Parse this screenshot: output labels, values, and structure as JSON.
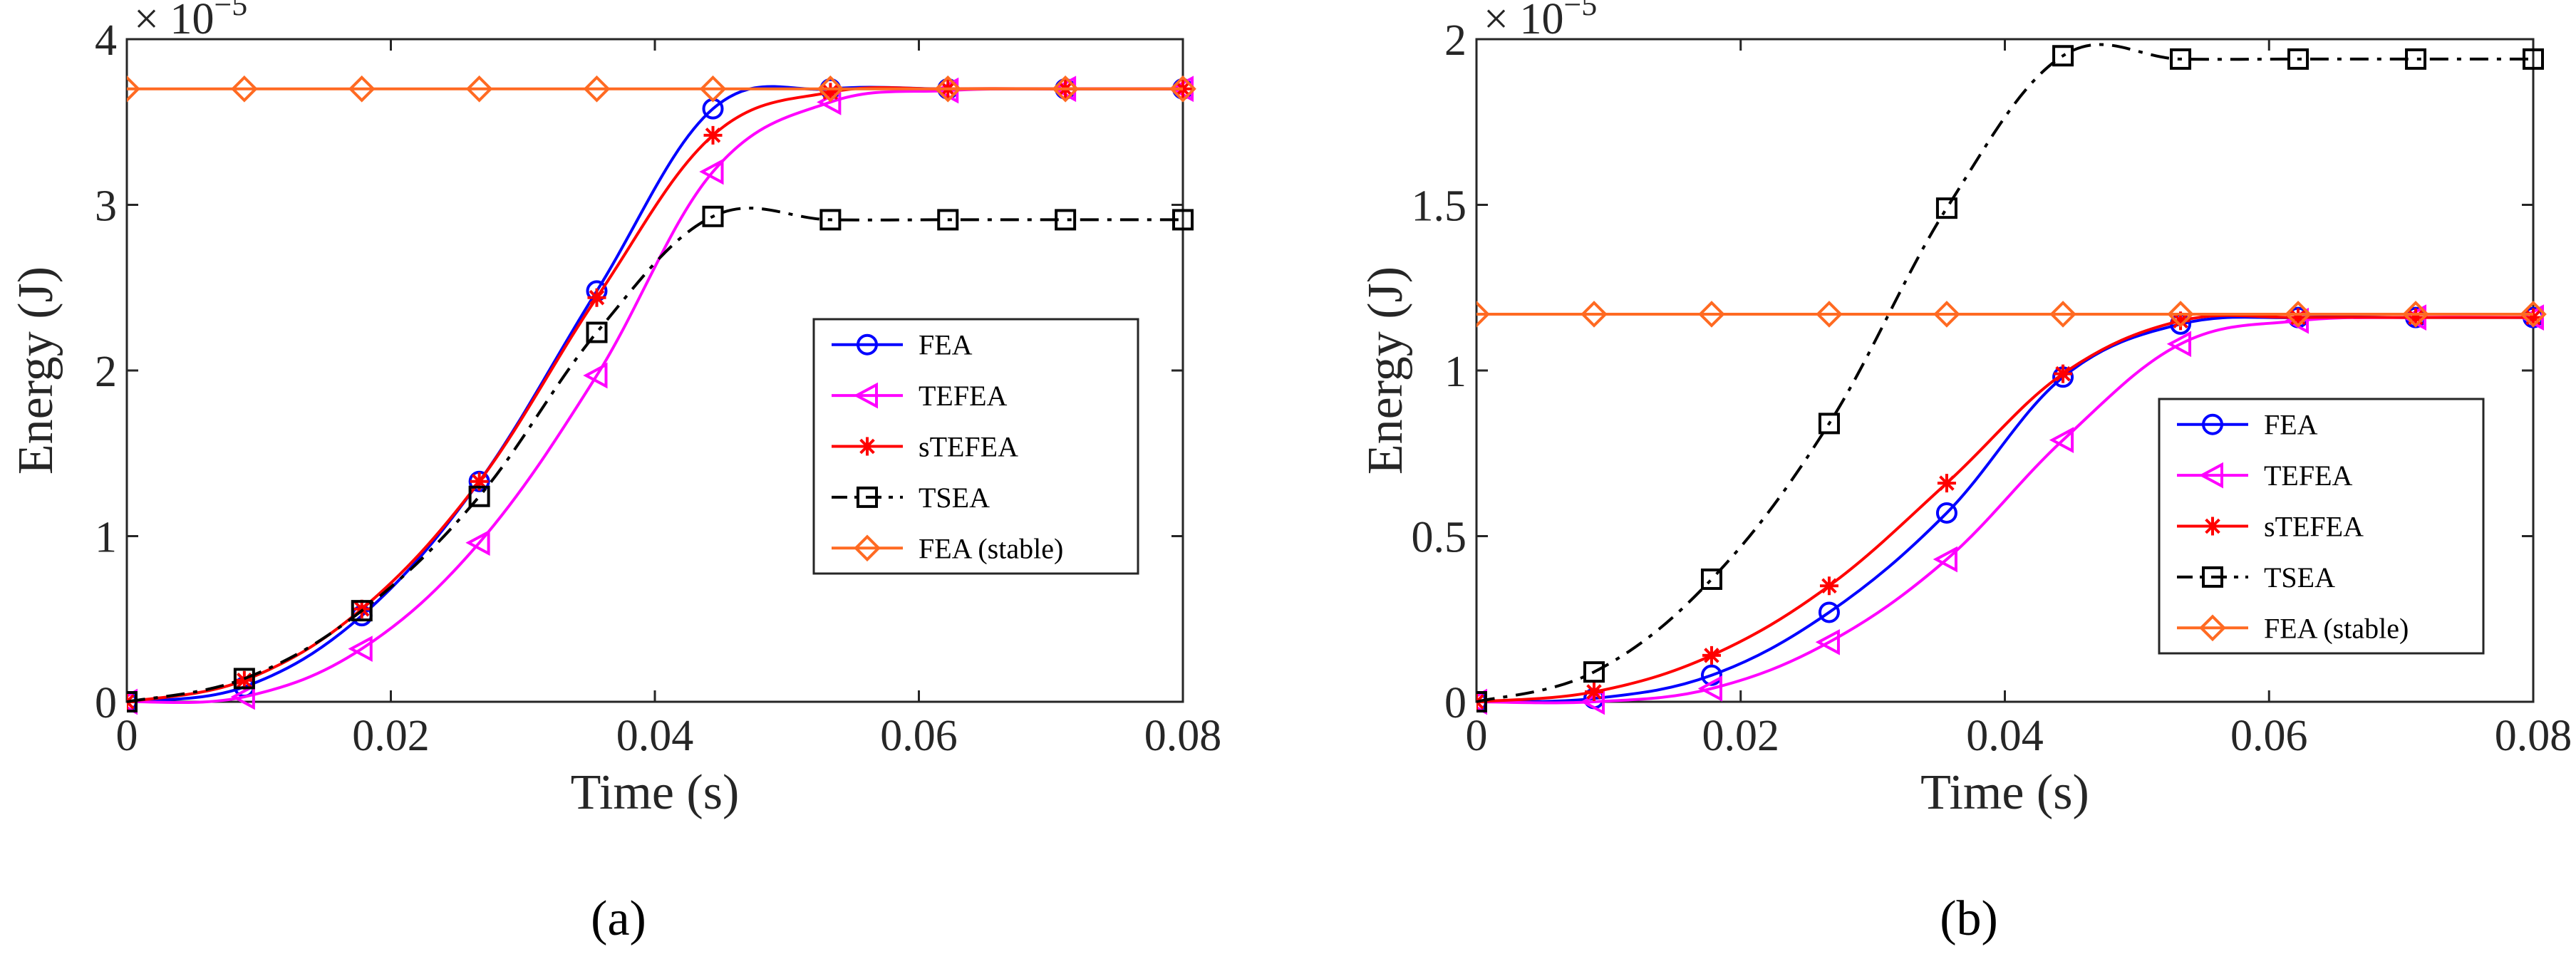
{
  "figure": {
    "panels": [
      "(a)",
      "(b)"
    ]
  },
  "colors": {
    "FEA": "#0000ff",
    "TEFEA": "#ff00ff",
    "sTEFEA": "#ff0000",
    "TSEA": "#000000",
    "FEA (stable)": "#ff6a22"
  },
  "chart_data": [
    {
      "type": "line",
      "panel": "(a)",
      "xlabel": "Time (s)",
      "ylabel": "Energy (J)",
      "exponent_label": "×10^-5",
      "exponent_base": "× 10",
      "exponent_power": "−5",
      "xlim": [
        0,
        0.08
      ],
      "ylim": [
        0,
        4
      ],
      "xticks": [
        0,
        0.02,
        0.04,
        0.06,
        0.08
      ],
      "xtick_labels": [
        "0",
        "0.02",
        "0.04",
        "0.06",
        "0.08"
      ],
      "yticks": [
        0,
        1,
        2,
        3,
        4
      ],
      "ytick_labels": [
        "0",
        "1",
        "2",
        "3",
        "4"
      ],
      "legend_position": "right-middle",
      "series": [
        {
          "name": "FEA",
          "marker": "circle",
          "dash": "solid",
          "x": [
            0,
            0.0089,
            0.0178,
            0.0267,
            0.0356,
            0.0444,
            0.0533,
            0.0622,
            0.0711,
            0.08
          ],
          "y": [
            0,
            0.09,
            0.52,
            1.33,
            2.48,
            3.58,
            3.7,
            3.7,
            3.7,
            3.7
          ]
        },
        {
          "name": "TEFEA",
          "marker": "triangle-left",
          "dash": "solid",
          "x": [
            0,
            0.0089,
            0.0178,
            0.0267,
            0.0356,
            0.0444,
            0.0533,
            0.0622,
            0.0711,
            0.08
          ],
          "y": [
            0,
            0.03,
            0.32,
            0.96,
            1.97,
            3.2,
            3.62,
            3.69,
            3.7,
            3.7
          ]
        },
        {
          "name": "sTEFEA",
          "marker": "asterisk",
          "dash": "solid",
          "x": [
            0,
            0.0089,
            0.0178,
            0.0267,
            0.0356,
            0.0444,
            0.0533,
            0.0622,
            0.0711,
            0.08
          ],
          "y": [
            0,
            0.13,
            0.56,
            1.33,
            2.44,
            3.42,
            3.68,
            3.7,
            3.7,
            3.7
          ]
        },
        {
          "name": "TSEA",
          "marker": "square",
          "dash": "dashdot",
          "x": [
            0,
            0.0089,
            0.0178,
            0.0267,
            0.0356,
            0.0444,
            0.0533,
            0.0622,
            0.0711,
            0.08
          ],
          "y": [
            0,
            0.14,
            0.55,
            1.24,
            2.23,
            2.93,
            2.91,
            2.91,
            2.91,
            2.91
          ]
        },
        {
          "name": "FEA (stable)",
          "marker": "diamond",
          "dash": "solid",
          "x": [
            0,
            0.0089,
            0.0178,
            0.0267,
            0.0356,
            0.0444,
            0.0533,
            0.0622,
            0.0711,
            0.08
          ],
          "y": [
            3.7,
            3.7,
            3.7,
            3.7,
            3.7,
            3.7,
            3.7,
            3.7,
            3.7,
            3.7
          ]
        }
      ]
    },
    {
      "type": "line",
      "panel": "(b)",
      "xlabel": "Time (s)",
      "ylabel": "Energy (J)",
      "exponent_label": "×10^-5",
      "exponent_base": "× 10",
      "exponent_power": "−5",
      "xlim": [
        0,
        0.08
      ],
      "ylim": [
        0,
        2
      ],
      "xticks": [
        0,
        0.02,
        0.04,
        0.06,
        0.08
      ],
      "xtick_labels": [
        "0",
        "0.02",
        "0.04",
        "0.06",
        "0.08"
      ],
      "yticks": [
        0,
        0.5,
        1,
        1.5,
        2
      ],
      "ytick_labels": [
        "0",
        "0.5",
        "1",
        "1.5",
        "2"
      ],
      "legend_position": "right-lower",
      "series": [
        {
          "name": "FEA",
          "marker": "circle",
          "dash": "solid",
          "x": [
            0,
            0.0089,
            0.0178,
            0.0267,
            0.0356,
            0.0444,
            0.0533,
            0.0622,
            0.0711,
            0.08
          ],
          "y": [
            0,
            0.01,
            0.08,
            0.27,
            0.57,
            0.98,
            1.14,
            1.16,
            1.16,
            1.16
          ]
        },
        {
          "name": "TEFEA",
          "marker": "triangle-left",
          "dash": "solid",
          "x": [
            0,
            0.0089,
            0.0178,
            0.0267,
            0.0356,
            0.0444,
            0.0533,
            0.0622,
            0.0711,
            0.08
          ],
          "y": [
            0,
            0.0,
            0.04,
            0.18,
            0.43,
            0.79,
            1.08,
            1.15,
            1.16,
            1.16
          ]
        },
        {
          "name": "sTEFEA",
          "marker": "asterisk",
          "dash": "solid",
          "x": [
            0,
            0.0089,
            0.0178,
            0.0267,
            0.0356,
            0.0444,
            0.0533,
            0.0622,
            0.0711,
            0.08
          ],
          "y": [
            0,
            0.03,
            0.14,
            0.35,
            0.66,
            0.99,
            1.15,
            1.16,
            1.16,
            1.16
          ]
        },
        {
          "name": "TSEA",
          "marker": "square",
          "dash": "dashdot",
          "x": [
            0,
            0.0089,
            0.0178,
            0.0267,
            0.0356,
            0.0444,
            0.0533,
            0.0622,
            0.0711,
            0.08
          ],
          "y": [
            0,
            0.09,
            0.37,
            0.84,
            1.49,
            1.95,
            1.94,
            1.94,
            1.94,
            1.94
          ]
        },
        {
          "name": "FEA (stable)",
          "marker": "diamond",
          "dash": "solid",
          "x": [
            0,
            0.0089,
            0.0178,
            0.0267,
            0.0356,
            0.0444,
            0.0533,
            0.0622,
            0.0711,
            0.08
          ],
          "y": [
            1.17,
            1.17,
            1.17,
            1.17,
            1.17,
            1.17,
            1.17,
            1.17,
            1.17,
            1.17
          ]
        }
      ]
    }
  ]
}
